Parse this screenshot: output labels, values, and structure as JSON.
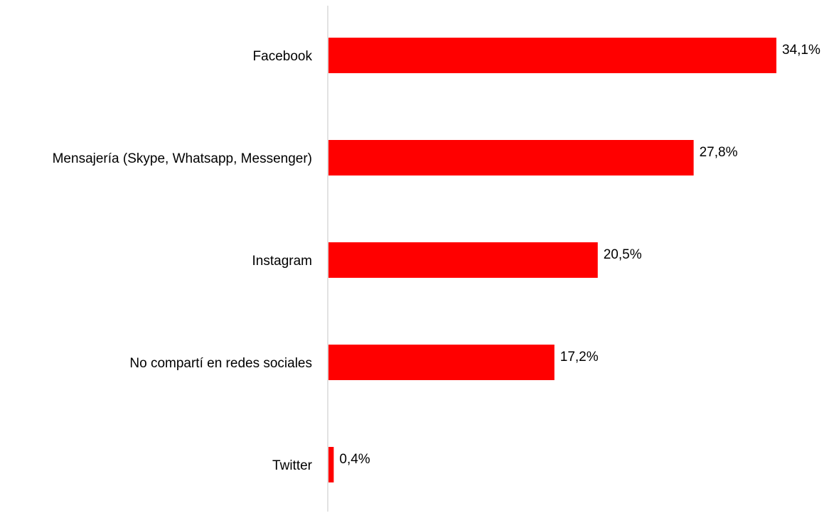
{
  "chart_data": {
    "type": "bar",
    "orientation": "horizontal",
    "categories": [
      "Facebook",
      "Mensajería (Skype, Whatsapp, Messenger)",
      "Instagram",
      "No compartí en redes sociales",
      "Twitter"
    ],
    "values": [
      34.1,
      27.8,
      20.5,
      17.2,
      0.4
    ],
    "value_labels": [
      "34,1%",
      "27,8%",
      "20,5%",
      "17,2%",
      "0,4%"
    ],
    "unit": "%",
    "xlim": [
      0,
      34.1
    ],
    "grid": false,
    "legend": "none",
    "bar_color": "#ff0000",
    "axis_color": "#d9d9d9"
  }
}
